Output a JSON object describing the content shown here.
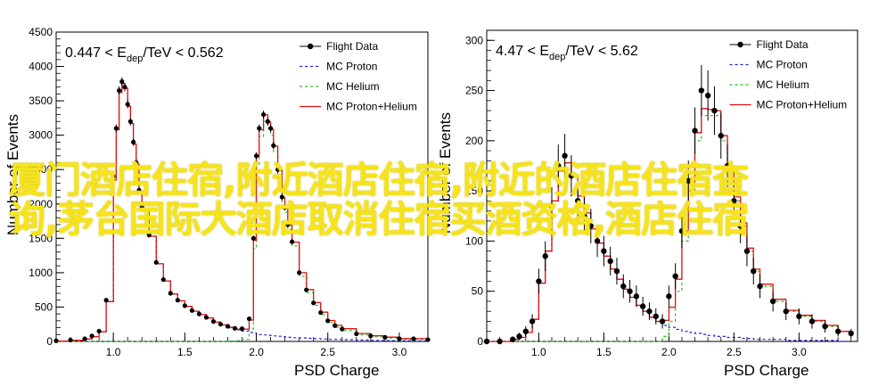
{
  "colors": {
    "flight": "#000000",
    "proton": "#1f1fd6",
    "helium": "#22c022",
    "sum": "#e01010",
    "overlay": "#f6e31a"
  },
  "overlay": {
    "line1": "厦门酒店住宿,附近酒店住宿,附近的酒店住宿查",
    "line2": "询,茅台国际大酒店取消住宿买酒资格,酒店住宿"
  },
  "chart_data": [
    {
      "type": "line",
      "title": "0.447 < E_dep/TeV < 0.562",
      "title_parts": {
        "pre": "0.447 < E",
        "sub": "dep",
        "post": "/TeV < 0.562"
      },
      "xlabel": "PSD Charge",
      "ylabel": "Number of Events",
      "xlim": [
        0.6,
        3.2
      ],
      "ylim": [
        0,
        4500
      ],
      "xticks": [
        "1.0",
        "1.5",
        "2.0",
        "2.5",
        "3.0"
      ],
      "yticks": [
        "0",
        "500",
        "1000",
        "1500",
        "2000",
        "2500",
        "3000",
        "3500",
        "4000",
        "4500"
      ],
      "legend_position": "top-right",
      "legend": [
        "Flight Data",
        "MC Proton",
        "MC Helium",
        "MC Proton+Helium"
      ],
      "x": [
        0.6,
        0.7,
        0.8,
        0.85,
        0.9,
        0.95,
        1.0,
        1.02,
        1.04,
        1.06,
        1.08,
        1.1,
        1.12,
        1.14,
        1.16,
        1.18,
        1.2,
        1.25,
        1.3,
        1.35,
        1.4,
        1.45,
        1.5,
        1.55,
        1.6,
        1.65,
        1.7,
        1.75,
        1.8,
        1.85,
        1.9,
        1.95,
        1.98,
        2.0,
        2.02,
        2.05,
        2.08,
        2.1,
        2.12,
        2.15,
        2.18,
        2.2,
        2.22,
        2.25,
        2.3,
        2.35,
        2.4,
        2.45,
        2.5,
        2.55,
        2.6,
        2.7,
        2.8,
        2.9,
        3.0,
        3.1,
        3.2
      ],
      "series": [
        {
          "name": "Flight Data",
          "values": [
            10,
            20,
            40,
            80,
            150,
            600,
            2400,
            3100,
            3650,
            3780,
            3700,
            3450,
            3200,
            2900,
            2600,
            2200,
            1950,
            1550,
            1150,
            900,
            700,
            600,
            520,
            450,
            400,
            350,
            290,
            250,
            220,
            190,
            185,
            330,
            1500,
            2700,
            3100,
            3300,
            3200,
            3100,
            2850,
            2500,
            2100,
            1950,
            1700,
            1450,
            1000,
            750,
            560,
            420,
            300,
            230,
            180,
            110,
            80,
            60,
            40,
            40,
            25
          ]
        },
        {
          "name": "MC Proton",
          "values": [
            5,
            15,
            35,
            70,
            140,
            580,
            2350,
            3080,
            3620,
            3750,
            3680,
            3420,
            3170,
            2870,
            2580,
            2180,
            1930,
            1530,
            1130,
            880,
            690,
            590,
            510,
            440,
            390,
            340,
            280,
            240,
            200,
            170,
            150,
            130,
            120,
            110,
            100,
            95,
            90,
            85,
            80,
            75,
            70,
            65,
            60,
            55,
            50,
            45,
            40,
            35,
            30,
            28,
            25,
            20,
            15,
            12,
            10,
            8,
            5
          ]
        },
        {
          "name": "MC Helium",
          "values": [
            0,
            0,
            0,
            0,
            0,
            0,
            0,
            0,
            0,
            0,
            0,
            0,
            0,
            0,
            0,
            0,
            0,
            0,
            0,
            0,
            0,
            0,
            0,
            0,
            0,
            0,
            0,
            0,
            5,
            10,
            30,
            180,
            1350,
            2580,
            2980,
            3200,
            3100,
            3000,
            2760,
            2410,
            2020,
            1880,
            1630,
            1390,
            950,
            710,
            525,
            390,
            275,
            205,
            160,
            95,
            68,
            50,
            32,
            32,
            20
          ]
        },
        {
          "name": "MC Proton+Helium",
          "values": [
            5,
            15,
            35,
            70,
            140,
            580,
            2350,
            3080,
            3620,
            3750,
            3680,
            3420,
            3170,
            2870,
            2580,
            2180,
            1930,
            1530,
            1130,
            880,
            690,
            590,
            510,
            440,
            390,
            340,
            280,
            240,
            205,
            180,
            180,
            310,
            1470,
            2690,
            3080,
            3295,
            3190,
            3085,
            2840,
            2485,
            2090,
            1945,
            1690,
            1445,
            1000,
            755,
            565,
            425,
            305,
            233,
            185,
            115,
            83,
            62,
            42,
            40,
            25
          ]
        }
      ]
    },
    {
      "type": "line",
      "title": "4.47 < E_dep/TeV < 5.62",
      "title_parts": {
        "pre": "4.47 < E",
        "sub": "dep",
        "post": "/TeV < 5.62"
      },
      "xlabel": "PSD Charge",
      "ylabel": "Number of Events",
      "xlim": [
        0.6,
        3.45
      ],
      "ylim": [
        0,
        310
      ],
      "xticks": [
        "1.0",
        "1.5",
        "2.0",
        "2.5",
        "3.0"
      ],
      "yticks": [
        "0",
        "50",
        "100",
        "150",
        "200",
        "250",
        "300"
      ],
      "legend_position": "top-right",
      "legend": [
        "Flight Data",
        "MC Proton",
        "MC Helium",
        "MC Proton+Helium"
      ],
      "x": [
        0.6,
        0.7,
        0.8,
        0.85,
        0.9,
        0.95,
        1.0,
        1.05,
        1.1,
        1.15,
        1.2,
        1.25,
        1.3,
        1.35,
        1.4,
        1.45,
        1.5,
        1.55,
        1.6,
        1.65,
        1.7,
        1.75,
        1.8,
        1.85,
        1.9,
        1.95,
        2.0,
        2.05,
        2.1,
        2.15,
        2.2,
        2.25,
        2.3,
        2.35,
        2.4,
        2.45,
        2.5,
        2.55,
        2.6,
        2.65,
        2.7,
        2.8,
        2.9,
        3.0,
        3.1,
        3.2,
        3.3,
        3.4
      ],
      "series": [
        {
          "name": "Flight Data",
          "values": [
            0,
            0,
            2,
            5,
            10,
            20,
            60,
            85,
            135,
            175,
            185,
            165,
            140,
            125,
            115,
            100,
            90,
            80,
            70,
            55,
            50,
            45,
            35,
            30,
            25,
            20,
            45,
            65,
            110,
            160,
            210,
            250,
            245,
            230,
            205,
            175,
            140,
            115,
            90,
            70,
            55,
            40,
            30,
            25,
            20,
            15,
            10,
            8
          ]
        },
        {
          "name": "MC Proton",
          "values": [
            0,
            0,
            2,
            4,
            9,
            22,
            58,
            90,
            140,
            170,
            178,
            165,
            145,
            128,
            112,
            98,
            85,
            72,
            62,
            52,
            44,
            36,
            30,
            24,
            20,
            16,
            14,
            12,
            10,
            9,
            8,
            7,
            6,
            5,
            5,
            4,
            4,
            3,
            3,
            2,
            2,
            2,
            1,
            1,
            1,
            1,
            0,
            0
          ]
        },
        {
          "name": "MC Helium",
          "values": [
            0,
            0,
            0,
            0,
            0,
            0,
            0,
            0,
            0,
            0,
            0,
            0,
            0,
            0,
            0,
            0,
            0,
            0,
            0,
            0,
            0,
            0,
            0,
            0,
            0,
            5,
            20,
            50,
            100,
            150,
            200,
            225,
            225,
            225,
            200,
            170,
            140,
            115,
            90,
            70,
            55,
            40,
            30,
            25,
            20,
            15,
            10,
            8
          ]
        },
        {
          "name": "MC Proton+Helium",
          "values": [
            0,
            0,
            2,
            4,
            9,
            22,
            58,
            90,
            140,
            170,
            178,
            165,
            145,
            128,
            112,
            98,
            85,
            72,
            62,
            52,
            44,
            36,
            30,
            24,
            20,
            21,
            34,
            62,
            110,
            159,
            208,
            232,
            231,
            230,
            205,
            174,
            144,
            118,
            93,
            72,
            57,
            42,
            31,
            26,
            21,
            16,
            10,
            8
          ]
        }
      ]
    }
  ]
}
